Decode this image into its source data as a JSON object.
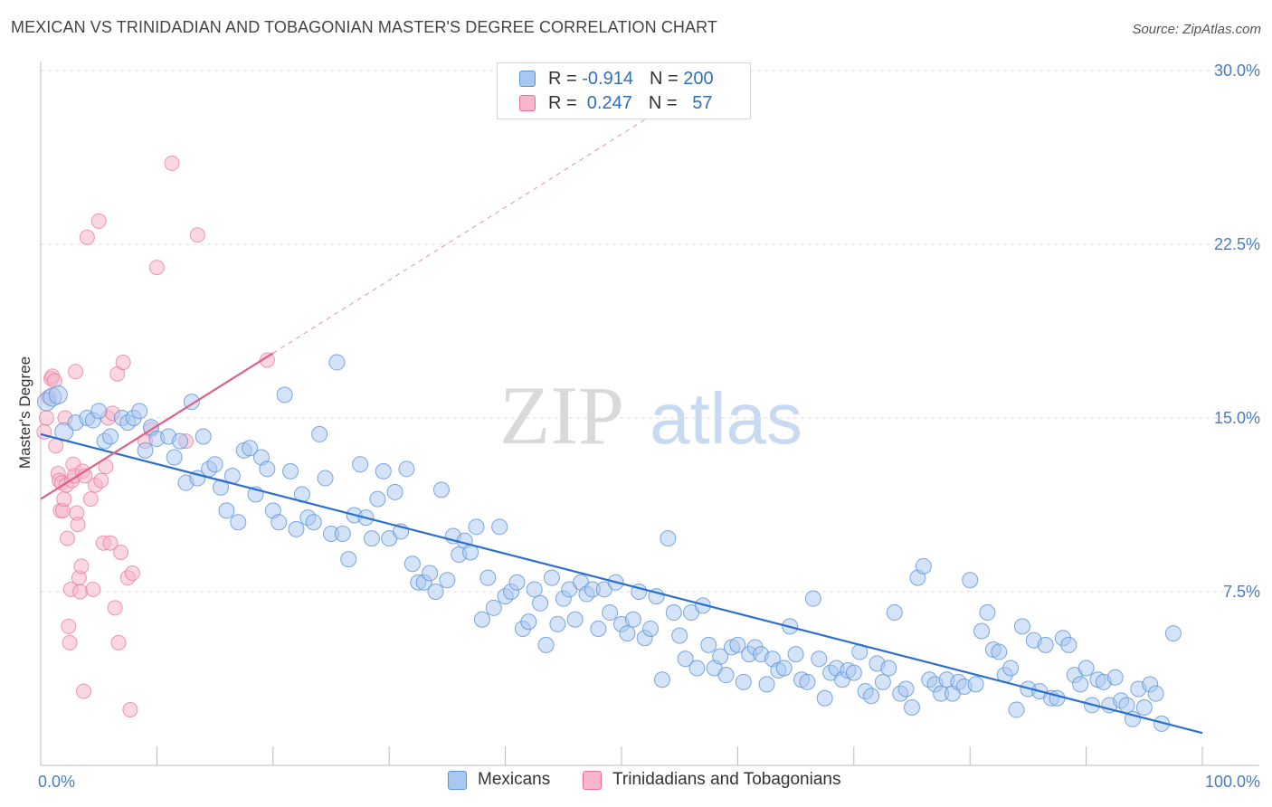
{
  "title": "MEXICAN VS TRINIDADIAN AND TOBAGONIAN MASTER'S DEGREE CORRELATION CHART",
  "source": "Source: ZipAtlas.com",
  "watermark": {
    "zip": "ZIP",
    "atlas": "atlas"
  },
  "legend": {
    "rows": [
      {
        "r_label": "R = ",
        "r_value": "-0.914",
        "n_label": "N = ",
        "n_value": "200",
        "color": "#a9c8f0"
      },
      {
        "r_label": "R = ",
        "r_value": " 0.247",
        "n_label": "N = ",
        "n_value": "  57",
        "color": "#f7b6cb"
      }
    ]
  },
  "bottom_legend": {
    "mexicans": "Mexicans",
    "trinidadians": "Trinidadians and Tobagonians"
  },
  "chart_data": {
    "type": "scatter",
    "xlabel": "",
    "ylabel": "Master's Degree",
    "xlim": [
      0,
      100
    ],
    "ylim": [
      0,
      30
    ],
    "y_ticks": [
      7.5,
      15.0,
      22.5,
      30.0
    ],
    "y_tick_labels": [
      "7.5%",
      "15.0%",
      "22.5%",
      "30.0%"
    ],
    "x_tick_labels": [
      "0.0%",
      "100.0%"
    ],
    "grid": "horizontal dashed",
    "colors": {
      "mexicans": "#5b93dc",
      "mexicans_fill": "#a9c8f0",
      "trinidad": "#e86f98",
      "trinidad_fill": "#f7b6cb",
      "blue_line": "#2a6fd0",
      "pink_line": "#e0608a"
    },
    "series": [
      {
        "name": "Mexicans",
        "trend": {
          "x0": 0,
          "y0": 14.3,
          "x1": 100,
          "y1": 1.4
        },
        "points": [
          [
            0.5,
            15.7
          ],
          [
            1.0,
            15.9
          ],
          [
            1.5,
            16.0
          ],
          [
            2.0,
            14.4
          ],
          [
            3.0,
            14.8
          ],
          [
            4.0,
            15.0
          ],
          [
            4.5,
            14.9
          ],
          [
            5.0,
            15.3
          ],
          [
            5.5,
            14.0
          ],
          [
            6.0,
            14.2
          ],
          [
            7.0,
            15.0
          ],
          [
            7.5,
            14.8
          ],
          [
            8.0,
            15.0
          ],
          [
            8.5,
            15.3
          ],
          [
            9.0,
            13.6
          ],
          [
            9.5,
            14.6
          ],
          [
            10.0,
            14.1
          ],
          [
            11.0,
            14.2
          ],
          [
            11.5,
            13.3
          ],
          [
            12.0,
            14.0
          ],
          [
            12.5,
            12.2
          ],
          [
            13.0,
            15.7
          ],
          [
            13.5,
            12.4
          ],
          [
            14.0,
            14.2
          ],
          [
            14.5,
            12.8
          ],
          [
            15.0,
            13.0
          ],
          [
            15.5,
            12.0
          ],
          [
            16.0,
            11.0
          ],
          [
            16.5,
            12.5
          ],
          [
            17.0,
            10.5
          ],
          [
            17.5,
            13.6
          ],
          [
            18.0,
            13.7
          ],
          [
            18.5,
            11.7
          ],
          [
            19.0,
            13.3
          ],
          [
            19.5,
            12.8
          ],
          [
            20.0,
            11.0
          ],
          [
            20.5,
            10.5
          ],
          [
            21.0,
            16.0
          ],
          [
            21.5,
            12.7
          ],
          [
            22.0,
            10.2
          ],
          [
            22.5,
            11.7
          ],
          [
            23.0,
            10.7
          ],
          [
            23.5,
            10.5
          ],
          [
            24.0,
            14.3
          ],
          [
            24.5,
            12.4
          ],
          [
            25.0,
            10.0
          ],
          [
            25.5,
            17.4
          ],
          [
            26.0,
            10.0
          ],
          [
            26.5,
            8.9
          ],
          [
            27.0,
            10.8
          ],
          [
            27.5,
            13.0
          ],
          [
            28.0,
            10.7
          ],
          [
            28.5,
            9.8
          ],
          [
            29.0,
            11.5
          ],
          [
            29.5,
            12.7
          ],
          [
            30.0,
            9.8
          ],
          [
            30.5,
            11.8
          ],
          [
            31.0,
            10.1
          ],
          [
            31.5,
            12.8
          ],
          [
            32.0,
            8.7
          ],
          [
            32.5,
            7.9
          ],
          [
            33.0,
            7.9
          ],
          [
            33.5,
            8.3
          ],
          [
            34.0,
            7.5
          ],
          [
            34.5,
            11.9
          ],
          [
            35.0,
            8.0
          ],
          [
            35.5,
            9.9
          ],
          [
            36.0,
            9.1
          ],
          [
            36.5,
            9.7
          ],
          [
            37.0,
            9.2
          ],
          [
            37.5,
            10.3
          ],
          [
            38.0,
            6.3
          ],
          [
            38.5,
            8.1
          ],
          [
            39.0,
            6.8
          ],
          [
            39.5,
            10.3
          ],
          [
            40.0,
            7.3
          ],
          [
            40.5,
            7.5
          ],
          [
            41.0,
            7.9
          ],
          [
            41.5,
            5.9
          ],
          [
            42.0,
            6.2
          ],
          [
            42.5,
            7.6
          ],
          [
            43.0,
            7.0
          ],
          [
            43.5,
            5.2
          ],
          [
            44.0,
            8.1
          ],
          [
            44.5,
            6.1
          ],
          [
            45.0,
            7.2
          ],
          [
            45.5,
            7.6
          ],
          [
            46.0,
            6.3
          ],
          [
            46.5,
            7.9
          ],
          [
            47.0,
            7.4
          ],
          [
            47.5,
            7.6
          ],
          [
            48.0,
            5.9
          ],
          [
            48.5,
            7.6
          ],
          [
            49.0,
            6.6
          ],
          [
            49.5,
            7.9
          ],
          [
            50.0,
            6.1
          ],
          [
            50.5,
            5.7
          ],
          [
            51.0,
            6.3
          ],
          [
            51.5,
            7.5
          ],
          [
            52.0,
            5.5
          ],
          [
            52.5,
            5.9
          ],
          [
            53.0,
            7.3
          ],
          [
            53.5,
            3.7
          ],
          [
            54.0,
            9.8
          ],
          [
            54.5,
            6.6
          ],
          [
            55.0,
            5.6
          ],
          [
            55.5,
            4.6
          ],
          [
            56.0,
            6.6
          ],
          [
            56.5,
            4.2
          ],
          [
            57.0,
            6.9
          ],
          [
            57.5,
            5.2
          ],
          [
            58.0,
            4.2
          ],
          [
            58.5,
            4.7
          ],
          [
            59.0,
            3.9
          ],
          [
            59.5,
            5.1
          ],
          [
            60.0,
            5.2
          ],
          [
            60.5,
            3.6
          ],
          [
            61.0,
            4.8
          ],
          [
            61.5,
            5.1
          ],
          [
            62.0,
            4.8
          ],
          [
            62.5,
            3.5
          ],
          [
            63.0,
            4.6
          ],
          [
            63.5,
            4.1
          ],
          [
            64.0,
            4.2
          ],
          [
            64.5,
            6.0
          ],
          [
            65.0,
            4.8
          ],
          [
            65.5,
            3.7
          ],
          [
            66.0,
            3.6
          ],
          [
            66.5,
            7.2
          ],
          [
            67.0,
            4.6
          ],
          [
            67.5,
            2.9
          ],
          [
            68.0,
            4.0
          ],
          [
            68.5,
            4.2
          ],
          [
            69.0,
            3.7
          ],
          [
            69.5,
            4.1
          ],
          [
            70.0,
            4.0
          ],
          [
            70.5,
            4.9
          ],
          [
            71.0,
            3.2
          ],
          [
            71.5,
            3.0
          ],
          [
            72.0,
            4.4
          ],
          [
            72.5,
            3.6
          ],
          [
            73.0,
            4.2
          ],
          [
            73.5,
            6.6
          ],
          [
            74.0,
            3.1
          ],
          [
            74.5,
            3.3
          ],
          [
            75.0,
            2.5
          ],
          [
            75.5,
            8.1
          ],
          [
            76.0,
            8.6
          ],
          [
            76.5,
            3.7
          ],
          [
            77.0,
            3.5
          ],
          [
            77.5,
            3.1
          ],
          [
            78.0,
            3.7
          ],
          [
            78.5,
            3.1
          ],
          [
            79.0,
            3.6
          ],
          [
            79.5,
            3.4
          ],
          [
            80.0,
            8.0
          ],
          [
            80.5,
            3.5
          ],
          [
            81.0,
            5.8
          ],
          [
            81.5,
            6.6
          ],
          [
            82.0,
            5.0
          ],
          [
            82.5,
            4.9
          ],
          [
            83.0,
            3.9
          ],
          [
            83.5,
            4.2
          ],
          [
            84.0,
            2.4
          ],
          [
            84.5,
            6.0
          ],
          [
            85.0,
            3.3
          ],
          [
            85.5,
            5.4
          ],
          [
            86.0,
            3.2
          ],
          [
            86.5,
            5.2
          ],
          [
            87.0,
            2.9
          ],
          [
            87.5,
            2.9
          ],
          [
            88.0,
            5.5
          ],
          [
            88.5,
            5.2
          ],
          [
            89.0,
            3.9
          ],
          [
            89.5,
            3.5
          ],
          [
            90.0,
            4.2
          ],
          [
            90.5,
            2.6
          ],
          [
            91.0,
            3.7
          ],
          [
            91.5,
            3.6
          ],
          [
            92.0,
            2.6
          ],
          [
            92.5,
            3.8
          ],
          [
            93.0,
            2.8
          ],
          [
            93.5,
            2.6
          ],
          [
            94.0,
            2.0
          ],
          [
            94.5,
            3.3
          ],
          [
            95.0,
            2.5
          ],
          [
            95.5,
            3.5
          ],
          [
            96.0,
            3.1
          ],
          [
            96.5,
            1.8
          ],
          [
            97.5,
            5.7
          ]
        ]
      },
      {
        "name": "Trinidadians and Tobagonians",
        "trend": {
          "x0": 0,
          "y0": 11.5,
          "x1": 20,
          "y1": 17.8
        },
        "points": [
          [
            0.3,
            14.4
          ],
          [
            0.5,
            15.0
          ],
          [
            0.7,
            15.9
          ],
          [
            0.9,
            16.7
          ],
          [
            1.0,
            16.8
          ],
          [
            1.2,
            16.6
          ],
          [
            1.3,
            13.8
          ],
          [
            1.5,
            12.6
          ],
          [
            1.6,
            12.3
          ],
          [
            1.7,
            11.0
          ],
          [
            1.8,
            12.2
          ],
          [
            1.9,
            11.0
          ],
          [
            2.0,
            11.5
          ],
          [
            2.1,
            15.0
          ],
          [
            2.2,
            12.1
          ],
          [
            2.3,
            9.8
          ],
          [
            2.4,
            6.0
          ],
          [
            2.5,
            5.3
          ],
          [
            2.6,
            7.6
          ],
          [
            2.7,
            12.3
          ],
          [
            2.8,
            13.0
          ],
          [
            2.9,
            12.5
          ],
          [
            3.0,
            17.0
          ],
          [
            3.1,
            10.9
          ],
          [
            3.2,
            10.4
          ],
          [
            3.3,
            8.1
          ],
          [
            3.4,
            7.5
          ],
          [
            3.5,
            8.6
          ],
          [
            3.6,
            12.7
          ],
          [
            3.7,
            3.2
          ],
          [
            3.8,
            12.5
          ],
          [
            4.0,
            22.8
          ],
          [
            4.3,
            11.5
          ],
          [
            4.5,
            7.6
          ],
          [
            4.7,
            12.1
          ],
          [
            5.0,
            23.5
          ],
          [
            5.2,
            12.3
          ],
          [
            5.4,
            9.6
          ],
          [
            5.6,
            12.9
          ],
          [
            5.8,
            15.0
          ],
          [
            6.0,
            9.6
          ],
          [
            6.2,
            15.2
          ],
          [
            6.4,
            6.8
          ],
          [
            6.6,
            16.9
          ],
          [
            6.7,
            5.3
          ],
          [
            6.9,
            9.2
          ],
          [
            7.1,
            17.4
          ],
          [
            7.5,
            8.1
          ],
          [
            7.7,
            2.4
          ],
          [
            7.9,
            8.3
          ],
          [
            9.0,
            14.0
          ],
          [
            9.5,
            14.5
          ],
          [
            10.0,
            21.5
          ],
          [
            11.3,
            26.0
          ],
          [
            12.5,
            14.0
          ],
          [
            13.5,
            22.9
          ],
          [
            19.5,
            17.5
          ]
        ]
      }
    ]
  }
}
